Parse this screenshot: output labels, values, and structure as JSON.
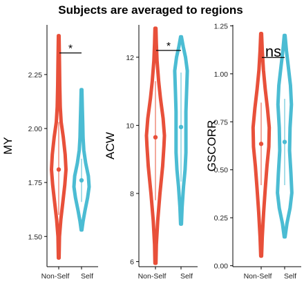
{
  "title": "Subjects are averaged to regions",
  "colors": {
    "non_self": "#e8503a",
    "self": "#4bbcd3",
    "axis": "#000000"
  },
  "chart_data": [
    {
      "type": "violin",
      "ylabel": "MY",
      "categories": [
        "Non-Self",
        "Self"
      ],
      "ylim": [
        1.36,
        2.48
      ],
      "yticks": [
        1.5,
        1.75,
        2.0,
        2.25
      ],
      "ytick_labels": [
        "1.50",
        "1.75",
        "2.00",
        "2.25"
      ],
      "significance": {
        "label": "*",
        "y": 2.35
      },
      "series": [
        {
          "category": "Non-Self",
          "min": 1.4,
          "max": 2.43,
          "mean": 1.81,
          "ci": [
            1.6,
            2.03
          ],
          "density": [
            [
              1.4,
              0.05
            ],
            [
              1.5,
              0.1
            ],
            [
              1.58,
              0.28
            ],
            [
              1.66,
              0.55
            ],
            [
              1.74,
              0.8
            ],
            [
              1.81,
              0.95
            ],
            [
              1.88,
              0.85
            ],
            [
              1.96,
              0.6
            ],
            [
              2.03,
              0.32
            ],
            [
              2.1,
              0.2
            ],
            [
              2.2,
              0.14
            ],
            [
              2.3,
              0.1
            ],
            [
              2.43,
              0.05
            ]
          ]
        },
        {
          "category": "Self",
          "min": 1.53,
          "max": 2.18,
          "mean": 1.76,
          "ci": [
            1.66,
            1.86
          ],
          "density": [
            [
              1.53,
              0.05
            ],
            [
              1.57,
              0.2
            ],
            [
              1.62,
              0.45
            ],
            [
              1.68,
              0.8
            ],
            [
              1.73,
              1.0
            ],
            [
              1.78,
              0.9
            ],
            [
              1.84,
              0.55
            ],
            [
              1.9,
              0.3
            ],
            [
              1.96,
              0.2
            ],
            [
              2.02,
              0.16
            ],
            [
              2.09,
              0.11
            ],
            [
              2.18,
              0.05
            ]
          ]
        }
      ]
    },
    {
      "type": "violin",
      "ylabel": "ACW",
      "categories": [
        "Non-Self",
        "Self"
      ],
      "ylim": [
        5.85,
        12.95
      ],
      "yticks": [
        6,
        8,
        10,
        12
      ],
      "ytick_labels": [
        "6",
        "8",
        "10",
        "12"
      ],
      "significance": {
        "label": "*",
        "y": 12.2
      },
      "series": [
        {
          "category": "Non-Self",
          "min": 5.95,
          "max": 12.85,
          "mean": 9.65,
          "ci": [
            7.8,
            11.3
          ],
          "density": [
            [
              5.95,
              0.05
            ],
            [
              6.5,
              0.1
            ],
            [
              7.2,
              0.25
            ],
            [
              8.0,
              0.5
            ],
            [
              8.8,
              0.8
            ],
            [
              9.4,
              0.95
            ],
            [
              9.7,
              1.0
            ],
            [
              10.2,
              0.85
            ],
            [
              10.8,
              0.55
            ],
            [
              11.3,
              0.35
            ],
            [
              11.9,
              0.18
            ],
            [
              12.4,
              0.1
            ],
            [
              12.85,
              0.05
            ]
          ]
        },
        {
          "category": "Self",
          "min": 7.1,
          "max": 12.6,
          "mean": 9.95,
          "ci": [
            8.35,
            11.55
          ],
          "density": [
            [
              7.1,
              0.05
            ],
            [
              7.6,
              0.12
            ],
            [
              8.2,
              0.28
            ],
            [
              8.7,
              0.45
            ],
            [
              9.2,
              0.55
            ],
            [
              9.8,
              0.55
            ],
            [
              10.4,
              0.55
            ],
            [
              11.0,
              0.62
            ],
            [
              11.6,
              0.7
            ],
            [
              12.0,
              0.5
            ],
            [
              12.3,
              0.25
            ],
            [
              12.6,
              0.05
            ]
          ]
        }
      ]
    },
    {
      "type": "violin",
      "ylabel": "GSCORR",
      "categories": [
        "Non-Self",
        "Self"
      ],
      "ylim": [
        -0.005,
        1.255
      ],
      "yticks": [
        0.0,
        0.25,
        0.5,
        0.75,
        1.0,
        1.25
      ],
      "ytick_labels": [
        "0.00",
        "0.25",
        "0.50",
        "0.75",
        "1.00",
        "1.25"
      ],
      "significance": {
        "label": "ns",
        "y": 1.085
      },
      "series": [
        {
          "category": "Non-Self",
          "min": 0.05,
          "max": 1.21,
          "mean": 0.635,
          "ci": [
            0.42,
            0.85
          ],
          "density": [
            [
              0.05,
              0.05
            ],
            [
              0.15,
              0.12
            ],
            [
              0.28,
              0.28
            ],
            [
              0.4,
              0.45
            ],
            [
              0.52,
              0.65
            ],
            [
              0.62,
              0.85
            ],
            [
              0.72,
              0.9
            ],
            [
              0.82,
              0.7
            ],
            [
              0.92,
              0.45
            ],
            [
              1.02,
              0.25
            ],
            [
              1.12,
              0.12
            ],
            [
              1.21,
              0.05
            ]
          ]
        },
        {
          "category": "Self",
          "min": 0.15,
          "max": 1.2,
          "mean": 0.645,
          "ci": [
            0.42,
            0.87
          ],
          "density": [
            [
              0.15,
              0.05
            ],
            [
              0.22,
              0.25
            ],
            [
              0.3,
              0.6
            ],
            [
              0.38,
              0.8
            ],
            [
              0.48,
              0.7
            ],
            [
              0.6,
              0.55
            ],
            [
              0.72,
              0.6
            ],
            [
              0.84,
              0.75
            ],
            [
              0.94,
              0.65
            ],
            [
              1.04,
              0.4
            ],
            [
              1.12,
              0.2
            ],
            [
              1.2,
              0.05
            ]
          ]
        }
      ]
    }
  ]
}
